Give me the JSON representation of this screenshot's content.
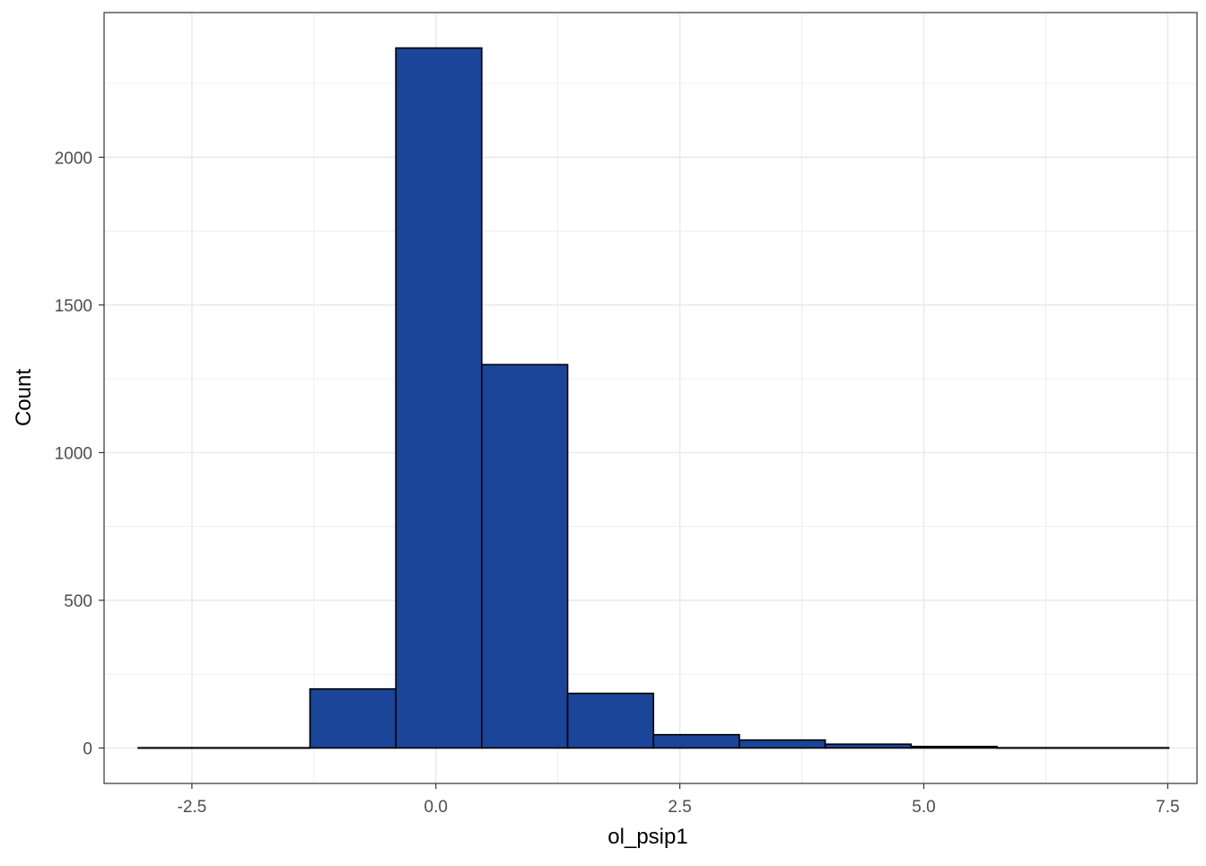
{
  "chart_data": {
    "type": "bar",
    "subtype": "histogram",
    "title": "",
    "xlabel": "ol_psip1",
    "ylabel": "Count",
    "xlim": [
      -3.4,
      7.8
    ],
    "ylim": [
      -120,
      2490
    ],
    "x_ticks": [
      -2.5,
      0.0,
      2.5,
      5.0,
      7.5
    ],
    "x_tick_labels": [
      "-2.5",
      "0.0",
      "2.5",
      "5.0",
      "7.5"
    ],
    "y_ticks": [
      0,
      500,
      1000,
      1500,
      2000
    ],
    "y_tick_labels": [
      "0",
      "500",
      "1000",
      "1500",
      "2000"
    ],
    "grid": true,
    "bins": [
      {
        "x_start": -3.05,
        "x_end": -2.17,
        "count": 1
      },
      {
        "x_start": -2.17,
        "x_end": -1.29,
        "count": 1
      },
      {
        "x_start": -1.29,
        "x_end": -0.41,
        "count": 200
      },
      {
        "x_start": -0.41,
        "x_end": 0.47,
        "count": 2370
      },
      {
        "x_start": 0.47,
        "x_end": 1.35,
        "count": 1298
      },
      {
        "x_start": 1.35,
        "x_end": 2.23,
        "count": 185
      },
      {
        "x_start": 2.23,
        "x_end": 3.11,
        "count": 45
      },
      {
        "x_start": 3.11,
        "x_end": 3.99,
        "count": 27
      },
      {
        "x_start": 3.99,
        "x_end": 4.87,
        "count": 13
      },
      {
        "x_start": 4.87,
        "x_end": 5.75,
        "count": 5
      },
      {
        "x_start": 5.75,
        "x_end": 6.63,
        "count": 1
      },
      {
        "x_start": 6.63,
        "x_end": 7.51,
        "count": 1
      }
    ],
    "colors": {
      "bar_fill": "#1a4599",
      "bar_stroke": "#000000",
      "grid": "#ebebeb",
      "panel_border": "#333333"
    }
  }
}
